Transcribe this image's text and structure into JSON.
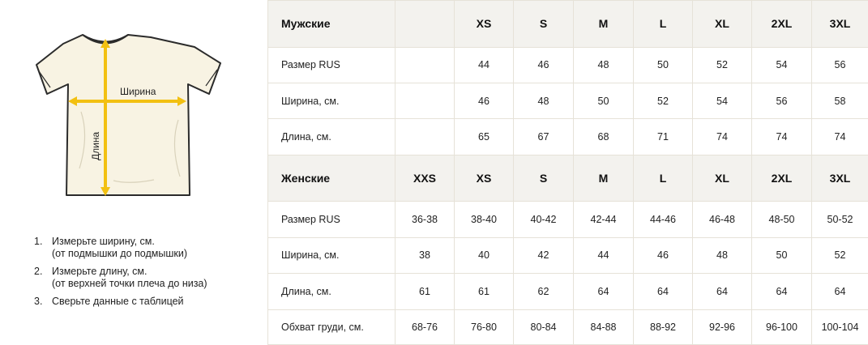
{
  "diagram": {
    "width_label": "Ширина",
    "length_label": "Длина",
    "colors": {
      "shirt": "#f8f3e3",
      "outline": "#2b2b2b",
      "arrow": "#f2c012"
    }
  },
  "instructions": [
    {
      "num": "1.",
      "line1": "Измерьте ширину, см.",
      "line2": "(от подмышки до подмышки)"
    },
    {
      "num": "2.",
      "line1": "Измерьте длину, см.",
      "line2": "(от верхней точки плеча до низа)"
    },
    {
      "num": "3.",
      "line1": "Сверьте данные с таблицей",
      "line2": ""
    }
  ],
  "men": {
    "title": "Мужские",
    "sizes": [
      "",
      "XS",
      "S",
      "M",
      "L",
      "XL",
      "2XL",
      "3XL"
    ],
    "rows": [
      {
        "label": "Размер RUS",
        "values": [
          "",
          "44",
          "46",
          "48",
          "50",
          "52",
          "54",
          "56"
        ]
      },
      {
        "label": "Ширина, см.",
        "values": [
          "",
          "46",
          "48",
          "50",
          "52",
          "54",
          "56",
          "58"
        ]
      },
      {
        "label": "Длина, см.",
        "values": [
          "",
          "65",
          "67",
          "68",
          "71",
          "74",
          "74",
          "74"
        ]
      }
    ]
  },
  "women": {
    "title": "Женские",
    "sizes": [
      "XXS",
      "XS",
      "S",
      "M",
      "L",
      "XL",
      "2XL",
      "3XL"
    ],
    "rows": [
      {
        "label": "Размер RUS",
        "values": [
          "36-38",
          "38-40",
          "40-42",
          "42-44",
          "44-46",
          "46-48",
          "48-50",
          "50-52"
        ]
      },
      {
        "label": "Ширина, см.",
        "values": [
          "38",
          "40",
          "42",
          "44",
          "46",
          "48",
          "50",
          "52"
        ]
      },
      {
        "label": "Длина, см.",
        "values": [
          "61",
          "61",
          "62",
          "64",
          "64",
          "64",
          "64",
          "64"
        ]
      },
      {
        "label": "Обхват груди, см.",
        "values": [
          "68-76",
          "76-80",
          "80-84",
          "84-88",
          "88-92",
          "92-96",
          "96-100",
          "100-104"
        ]
      }
    ]
  }
}
